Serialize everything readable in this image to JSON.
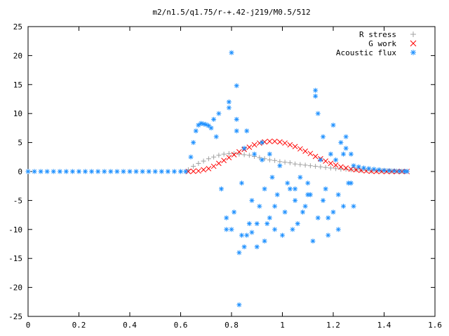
{
  "chart_data": {
    "type": "scatter",
    "title": "m2/n1.5/q1.75/r-+.42-j219/M0.5/512",
    "xlim": [
      0,
      1.6
    ],
    "ylim": [
      -25,
      25
    ],
    "xticks": [
      0,
      0.2,
      0.4,
      0.6,
      0.8,
      1,
      1.2,
      1.4,
      1.6
    ],
    "yticks": [
      -25,
      -20,
      -15,
      -10,
      -5,
      0,
      5,
      10,
      15,
      20,
      25
    ],
    "grid": false,
    "legend": "top-right",
    "series": [
      {
        "name": "R stress",
        "marker": "plus",
        "color": "#a0a0a0",
        "x": [
          0.63,
          0.65,
          0.67,
          0.69,
          0.71,
          0.73,
          0.75,
          0.77,
          0.79,
          0.81,
          0.83,
          0.85,
          0.87,
          0.89,
          0.91,
          0.93,
          0.95,
          0.97,
          0.99,
          1.01,
          1.03,
          1.05,
          1.07,
          1.09,
          1.11,
          1.13,
          1.15,
          1.17,
          1.19,
          1.21,
          1.23,
          1.25,
          1.27,
          1.29,
          1.31,
          1.33,
          1.35,
          1.37,
          1.39,
          1.41,
          1.43,
          1.45,
          1.47,
          1.49
        ],
        "y": [
          0.3,
          0.9,
          1.4,
          1.8,
          2.2,
          2.5,
          2.8,
          3.0,
          3.1,
          3.1,
          3.0,
          2.9,
          2.8,
          2.6,
          2.4,
          2.2,
          2.0,
          1.9,
          1.7,
          1.6,
          1.5,
          1.3,
          1.2,
          1.1,
          1.0,
          0.9,
          0.8,
          0.7,
          0.6,
          0.5,
          0.4,
          0.4,
          0.3,
          0.3,
          0.2,
          0.2,
          0.1,
          0.1,
          0.1,
          0.1,
          0.05,
          0.05,
          0.05,
          0.02
        ]
      },
      {
        "name": "G work",
        "marker": "cross",
        "color": "#ff0000",
        "x": [
          0.63,
          0.65,
          0.67,
          0.69,
          0.71,
          0.73,
          0.75,
          0.77,
          0.79,
          0.81,
          0.83,
          0.85,
          0.87,
          0.89,
          0.91,
          0.93,
          0.95,
          0.97,
          0.99,
          1.01,
          1.03,
          1.05,
          1.07,
          1.09,
          1.11,
          1.13,
          1.15,
          1.17,
          1.19,
          1.21,
          1.23,
          1.25,
          1.27,
          1.29,
          1.31,
          1.33,
          1.35,
          1.37,
          1.39,
          1.41,
          1.43,
          1.45,
          1.47,
          1.49
        ],
        "y": [
          0.0,
          0.05,
          0.1,
          0.3,
          0.5,
          0.9,
          1.4,
          1.9,
          2.4,
          2.9,
          3.4,
          3.8,
          4.2,
          4.6,
          4.9,
          5.1,
          5.2,
          5.2,
          5.1,
          4.9,
          4.6,
          4.3,
          3.9,
          3.5,
          3.1,
          2.6,
          2.2,
          1.8,
          1.4,
          1.1,
          0.8,
          0.6,
          0.4,
          0.3,
          0.2,
          0.1,
          0.05,
          0.02,
          0.01,
          0.0,
          0.0,
          0.0,
          0.0,
          0.0
        ]
      },
      {
        "name": "Acoustic flux",
        "marker": "star",
        "color": "#1e90ff",
        "x": [
          0.0,
          0.025,
          0.05,
          0.075,
          0.1,
          0.125,
          0.15,
          0.175,
          0.2,
          0.225,
          0.25,
          0.275,
          0.3,
          0.325,
          0.35,
          0.375,
          0.4,
          0.425,
          0.45,
          0.475,
          0.5,
          0.525,
          0.55,
          0.575,
          0.6,
          0.62,
          0.64,
          0.65,
          0.66,
          0.67,
          0.68,
          0.69,
          0.7,
          0.71,
          0.72,
          0.73,
          0.74,
          0.75,
          0.76,
          0.78,
          0.79,
          0.8,
          0.81,
          0.82,
          0.83,
          0.84,
          0.85,
          0.86,
          0.87,
          0.88,
          0.89,
          0.9,
          0.91,
          0.92,
          0.93,
          0.94,
          0.95,
          0.96,
          0.97,
          0.98,
          0.99,
          1.0,
          1.01,
          1.02,
          1.03,
          1.04,
          1.05,
          1.06,
          1.07,
          1.08,
          1.09,
          1.1,
          1.11,
          1.12,
          1.13,
          1.14,
          1.15,
          1.16,
          1.17,
          1.18,
          1.19,
          1.2,
          1.21,
          1.22,
          1.23,
          1.24,
          1.25,
          1.26,
          1.27,
          1.28,
          1.3,
          1.32,
          1.34,
          1.36,
          1.38,
          1.4,
          1.42,
          1.44,
          1.46,
          1.48,
          1.49,
          0.8,
          0.82,
          0.84,
          0.78,
          0.83,
          0.85,
          0.88,
          0.9,
          0.79,
          0.86,
          0.92,
          0.95,
          1.13,
          1.14,
          1.16,
          1.2,
          1.22,
          1.25,
          1.28,
          1.18,
          1.1,
          1.05,
          0.97,
          0.93,
          0.82,
          1.24,
          1.27
        ],
        "y": [
          0,
          0,
          0,
          0,
          0,
          0,
          0,
          0,
          0,
          0,
          0,
          0,
          0,
          0,
          0,
          0,
          0,
          0,
          0,
          0,
          0,
          0,
          0,
          0,
          0,
          0,
          2.5,
          5,
          7,
          8,
          8.3,
          8.2,
          8.1,
          7.9,
          7.5,
          9,
          6,
          10,
          -3,
          -8,
          12,
          -10,
          -7,
          7,
          -14,
          -2,
          4,
          -11,
          -9,
          -5,
          3,
          -13,
          -6,
          2,
          -3,
          -9,
          -8,
          -1,
          -6,
          -4,
          1,
          -11,
          -7,
          -2,
          -3,
          -10,
          -5,
          -9,
          -1,
          -7,
          -6,
          -2,
          -4,
          -12,
          13,
          -8,
          2,
          -5,
          -3,
          -11,
          3,
          -7,
          2,
          -4,
          5,
          -6,
          6,
          -2,
          3,
          1,
          0.8,
          0.6,
          0.5,
          0.4,
          0.3,
          0.2,
          0.15,
          0.1,
          0.05,
          0.03,
          0.02,
          20.5,
          14.8,
          -11,
          -10,
          -23,
          -13,
          -10.5,
          -9,
          11,
          7,
          5,
          3,
          14,
          10,
          6,
          8,
          -10,
          4,
          -6,
          -8,
          -4,
          -3,
          -10,
          -12,
          9,
          3,
          -2
        ]
      }
    ]
  }
}
